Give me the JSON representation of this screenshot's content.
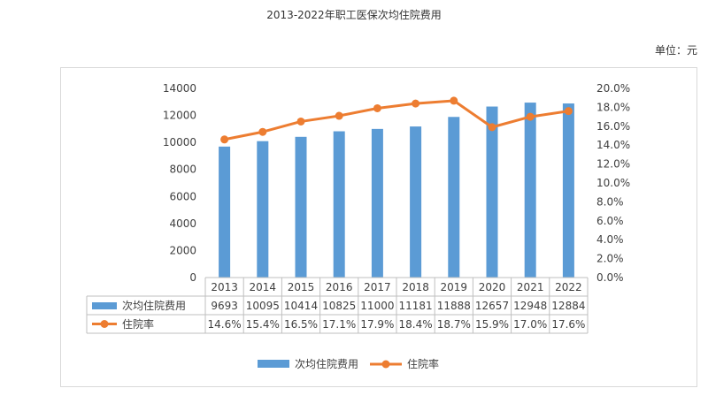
{
  "chart_data": {
    "type": "bar+line",
    "title": "2013-2022年职工医保次均住院费用",
    "unit_label": "单位：元",
    "categories": [
      "2013",
      "2014",
      "2015",
      "2016",
      "2017",
      "2018",
      "2019",
      "2020",
      "2021",
      "2022"
    ],
    "series": [
      {
        "name": "次均住院费用",
        "type": "bar",
        "axis": "left",
        "color": "#5b9bd5",
        "values": [
          9693,
          10095,
          10414,
          10825,
          11000,
          11181,
          11888,
          12657,
          12948,
          12884
        ],
        "labels": [
          "9693",
          "10095",
          "10414",
          "10825",
          "11000",
          "11181",
          "11888",
          "12657",
          "12948",
          "12884"
        ]
      },
      {
        "name": "住院率",
        "type": "line",
        "axis": "right",
        "color": "#ed7d31",
        "values": [
          14.6,
          15.4,
          16.5,
          17.1,
          17.9,
          18.4,
          18.7,
          15.9,
          17.0,
          17.6
        ],
        "labels": [
          "14.6%",
          "15.4%",
          "16.5%",
          "17.1%",
          "17.9%",
          "18.4%",
          "18.7%",
          "15.9%",
          "17.0%",
          "17.6%"
        ]
      }
    ],
    "y_left": {
      "min": 0,
      "max": 14000,
      "ticks": [
        "0",
        "2000",
        "4000",
        "6000",
        "8000",
        "10000",
        "12000",
        "14000"
      ]
    },
    "y_right": {
      "min": 0,
      "max": 20,
      "ticks": [
        "0.0%",
        "2.0%",
        "4.0%",
        "6.0%",
        "8.0%",
        "10.0%",
        "12.0%",
        "14.0%",
        "16.0%",
        "18.0%",
        "20.0%"
      ]
    },
    "legend": {
      "position": "bottom",
      "items": [
        "次均住院费用",
        "住院率"
      ]
    },
    "grid": false,
    "data_table": true
  }
}
